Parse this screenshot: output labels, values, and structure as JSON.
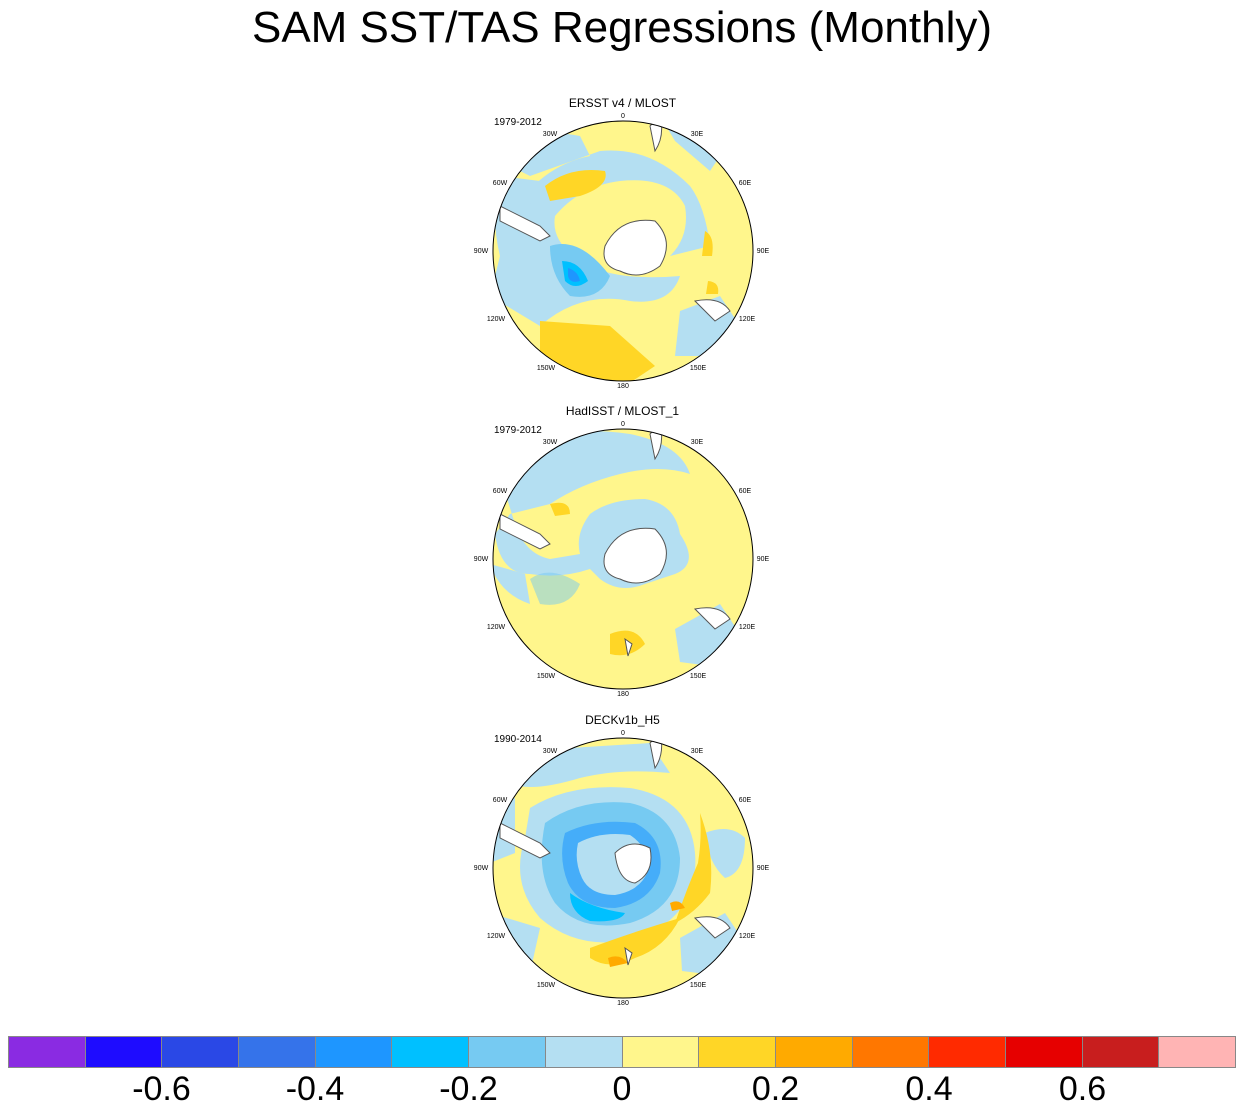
{
  "title": "SAM SST/TAS Regressions (Monthly)",
  "panels": [
    {
      "title": "ERSST v4 / MLOST",
      "period": "1979-2012"
    },
    {
      "title": "HadISST / MLOST_1",
      "period": "1979-2012"
    },
    {
      "title": "DECKv1b_H5",
      "period": "1990-2014"
    }
  ],
  "lon_labels": {
    "top": "0",
    "l30w": "30W",
    "l60w": "60W",
    "l90w": "90W",
    "l120w": "120W",
    "l150w": "150W",
    "bottom": "180",
    "r30e": "30E",
    "r60e": "60E",
    "r90e": "90E",
    "r120e": "120E",
    "r150e": "150E"
  },
  "colorbar": {
    "colors": [
      "#8a2be2",
      "#1e0cff",
      "#2a48e6",
      "#3573ea",
      "#1e96ff",
      "#00c0ff",
      "#76caf2",
      "#b4dff2",
      "#fff68c",
      "#ffd626",
      "#ffaa00",
      "#ff7700",
      "#ff2a00",
      "#e60000",
      "#c81e1e",
      "#ffb4b4"
    ],
    "ticks": [
      "-0.6",
      "-0.4",
      "-0.2",
      "0",
      "0.2",
      "0.4",
      "0.6"
    ]
  },
  "palette": {
    "yellow": "#fff68c",
    "gold": "#ffd626",
    "orange": "#ffaa00",
    "lightblue": "#b4dff2",
    "midblue": "#76caf2",
    "blue": "#00c0ff",
    "deepblue": "#1e96ff",
    "land": "#ffffff"
  }
}
